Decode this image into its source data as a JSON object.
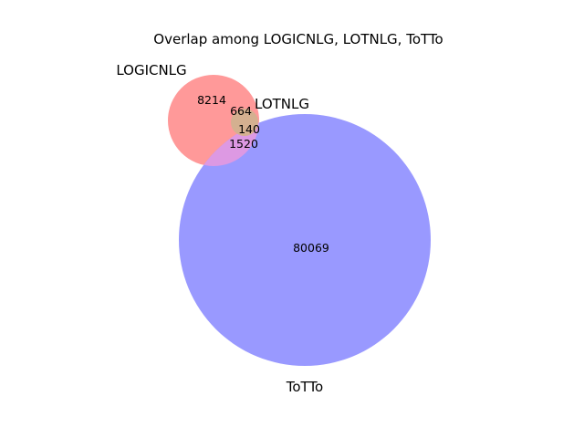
{
  "title": "Overlap among LOGICNLG, LOTNLG, ToTTo",
  "sets": {
    "logicnlg": {
      "label": "LOGICNLG",
      "color": "#ff9999"
    },
    "lotnlg": {
      "label": "LOTNLG",
      "color": "#d4b090"
    },
    "totto": {
      "label": "ToTTo",
      "color": "#9999ff"
    }
  },
  "regions": {
    "logicnlg_only": "8214",
    "logicnlg_lotnlg": "664",
    "all_three": "140",
    "logicnlg_totto": "1520",
    "totto_only": "80069"
  },
  "colors": {
    "logicnlg_totto": "#dd99e3"
  }
}
